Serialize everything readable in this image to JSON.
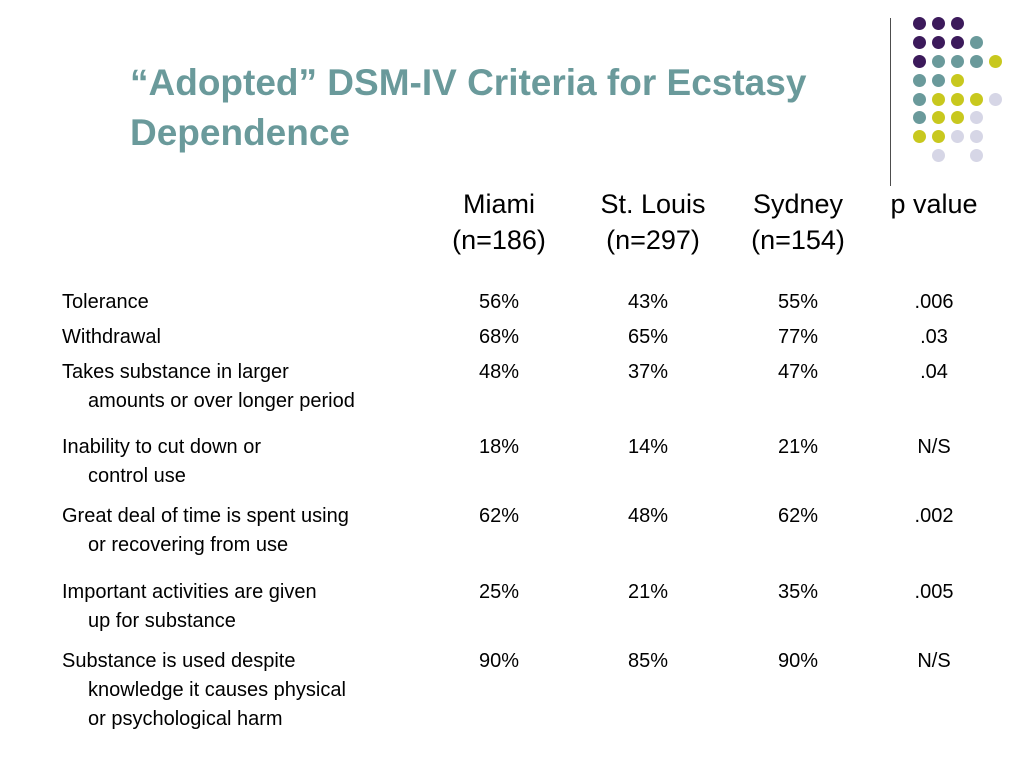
{
  "title": {
    "line1": "“Adopted” DSM-IV Criteria for Ecstasy",
    "line2": "Dependence"
  },
  "colors": {
    "title": "#6a9a9b",
    "dot_purple": "#3c1a5b",
    "dot_teal": "#6a9a9b",
    "dot_yellow": "#c8c81e",
    "dot_lavender": "#d6d6e6"
  },
  "columns": [
    {
      "name": "Miami",
      "n": "(n=186)"
    },
    {
      "name": "St. Louis",
      "n": "(n=297)"
    },
    {
      "name": "Sydney",
      "n": "(n=154)"
    },
    {
      "name": "p value",
      "n": ""
    }
  ],
  "rows": [
    {
      "lines": [
        "Tolerance"
      ],
      "values": [
        "56%",
        "43%",
        "55%",
        ".006"
      ]
    },
    {
      "lines": [
        "Withdrawal"
      ],
      "values": [
        "68%",
        "65%",
        "77%",
        ".03"
      ]
    },
    {
      "lines": [
        "Takes substance in larger",
        "amounts or over longer period"
      ],
      "values": [
        "48%",
        "37%",
        "47%",
        ".04"
      ]
    },
    {
      "lines": [
        "Inability to cut down or",
        "control use"
      ],
      "values": [
        "18%",
        "14%",
        "21%",
        "N/S"
      ]
    },
    {
      "lines": [
        "Great deal of time is spent using",
        "or recovering from use"
      ],
      "values": [
        "62%",
        "48%",
        "62%",
        ".002"
      ]
    },
    {
      "lines": [
        "Important activities are given",
        "up for substance"
      ],
      "values": [
        "25%",
        "21%",
        "35%",
        ".005"
      ]
    },
    {
      "lines": [
        "Substance is used despite",
        "knowledge it causes physical",
        "or psychological harm"
      ],
      "values": [
        "90%",
        "85%",
        "90%",
        "N/S"
      ]
    }
  ]
}
